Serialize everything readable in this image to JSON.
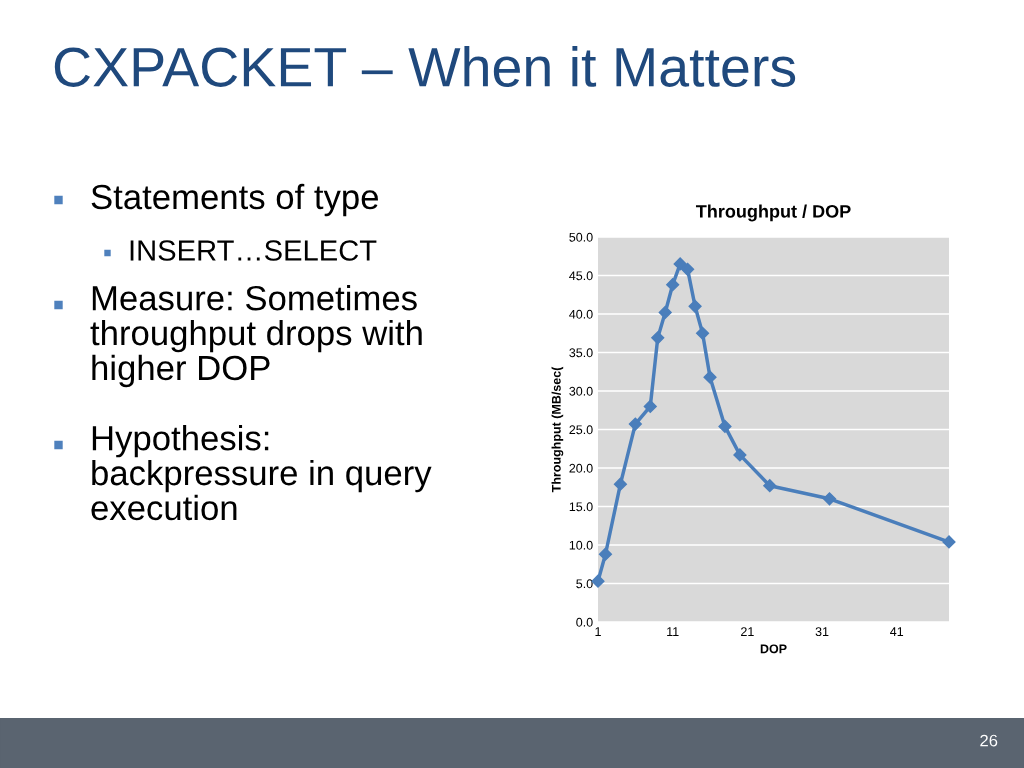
{
  "chart_data": {
    "type": "line",
    "title": "Throughput / DOP",
    "xlabel": "DOP",
    "ylabel": "Throughput (MB/sec(",
    "annotations": [
      "CXPACKET – When it Matters",
      "Statements of type",
      "INSERT…SELECT",
      "Measure: Sometimes\nthroughput drops with\nhigher DOP",
      "Hypothesis:\nbackpressure in query\nexecution",
      "26"
    ],
    "x": [
      1,
      2,
      4,
      6,
      8,
      9,
      10,
      11,
      12,
      13,
      14,
      15,
      16,
      18,
      20,
      24,
      32,
      48
    ],
    "series": [
      {
        "color": "#4a7ebb",
        "values": [
          5.3,
          8.8,
          17.9,
          25.7,
          28.0,
          36.9,
          40.2,
          43.8,
          46.5,
          45.8,
          41.0,
          37.5,
          31.8,
          25.4,
          21.7,
          17.7,
          16.0,
          10.4
        ]
      }
    ],
    "xlim": [
      1,
      48
    ],
    "xticks": [
      1,
      11,
      21,
      31,
      41
    ],
    "ylim": [
      0,
      50
    ],
    "yticks": [
      {
        "value": 0,
        "label": "0.0"
      },
      {
        "value": 5,
        "label": "5.0"
      },
      {
        "value": 10,
        "label": "10.0"
      },
      {
        "value": 15,
        "label": "15.0"
      },
      {
        "value": 20,
        "label": "20.0"
      },
      {
        "value": 25,
        "label": "25.0"
      },
      {
        "value": 30,
        "label": "30.0"
      },
      {
        "value": 35,
        "label": "35.0"
      },
      {
        "value": 40,
        "label": "40.0"
      },
      {
        "value": 45,
        "label": "45.0"
      },
      {
        "value": 50,
        "label": "50.0"
      }
    ],
    "grid": "y",
    "marker": "diamond",
    "line_style": "solid",
    "legend": false
  }
}
